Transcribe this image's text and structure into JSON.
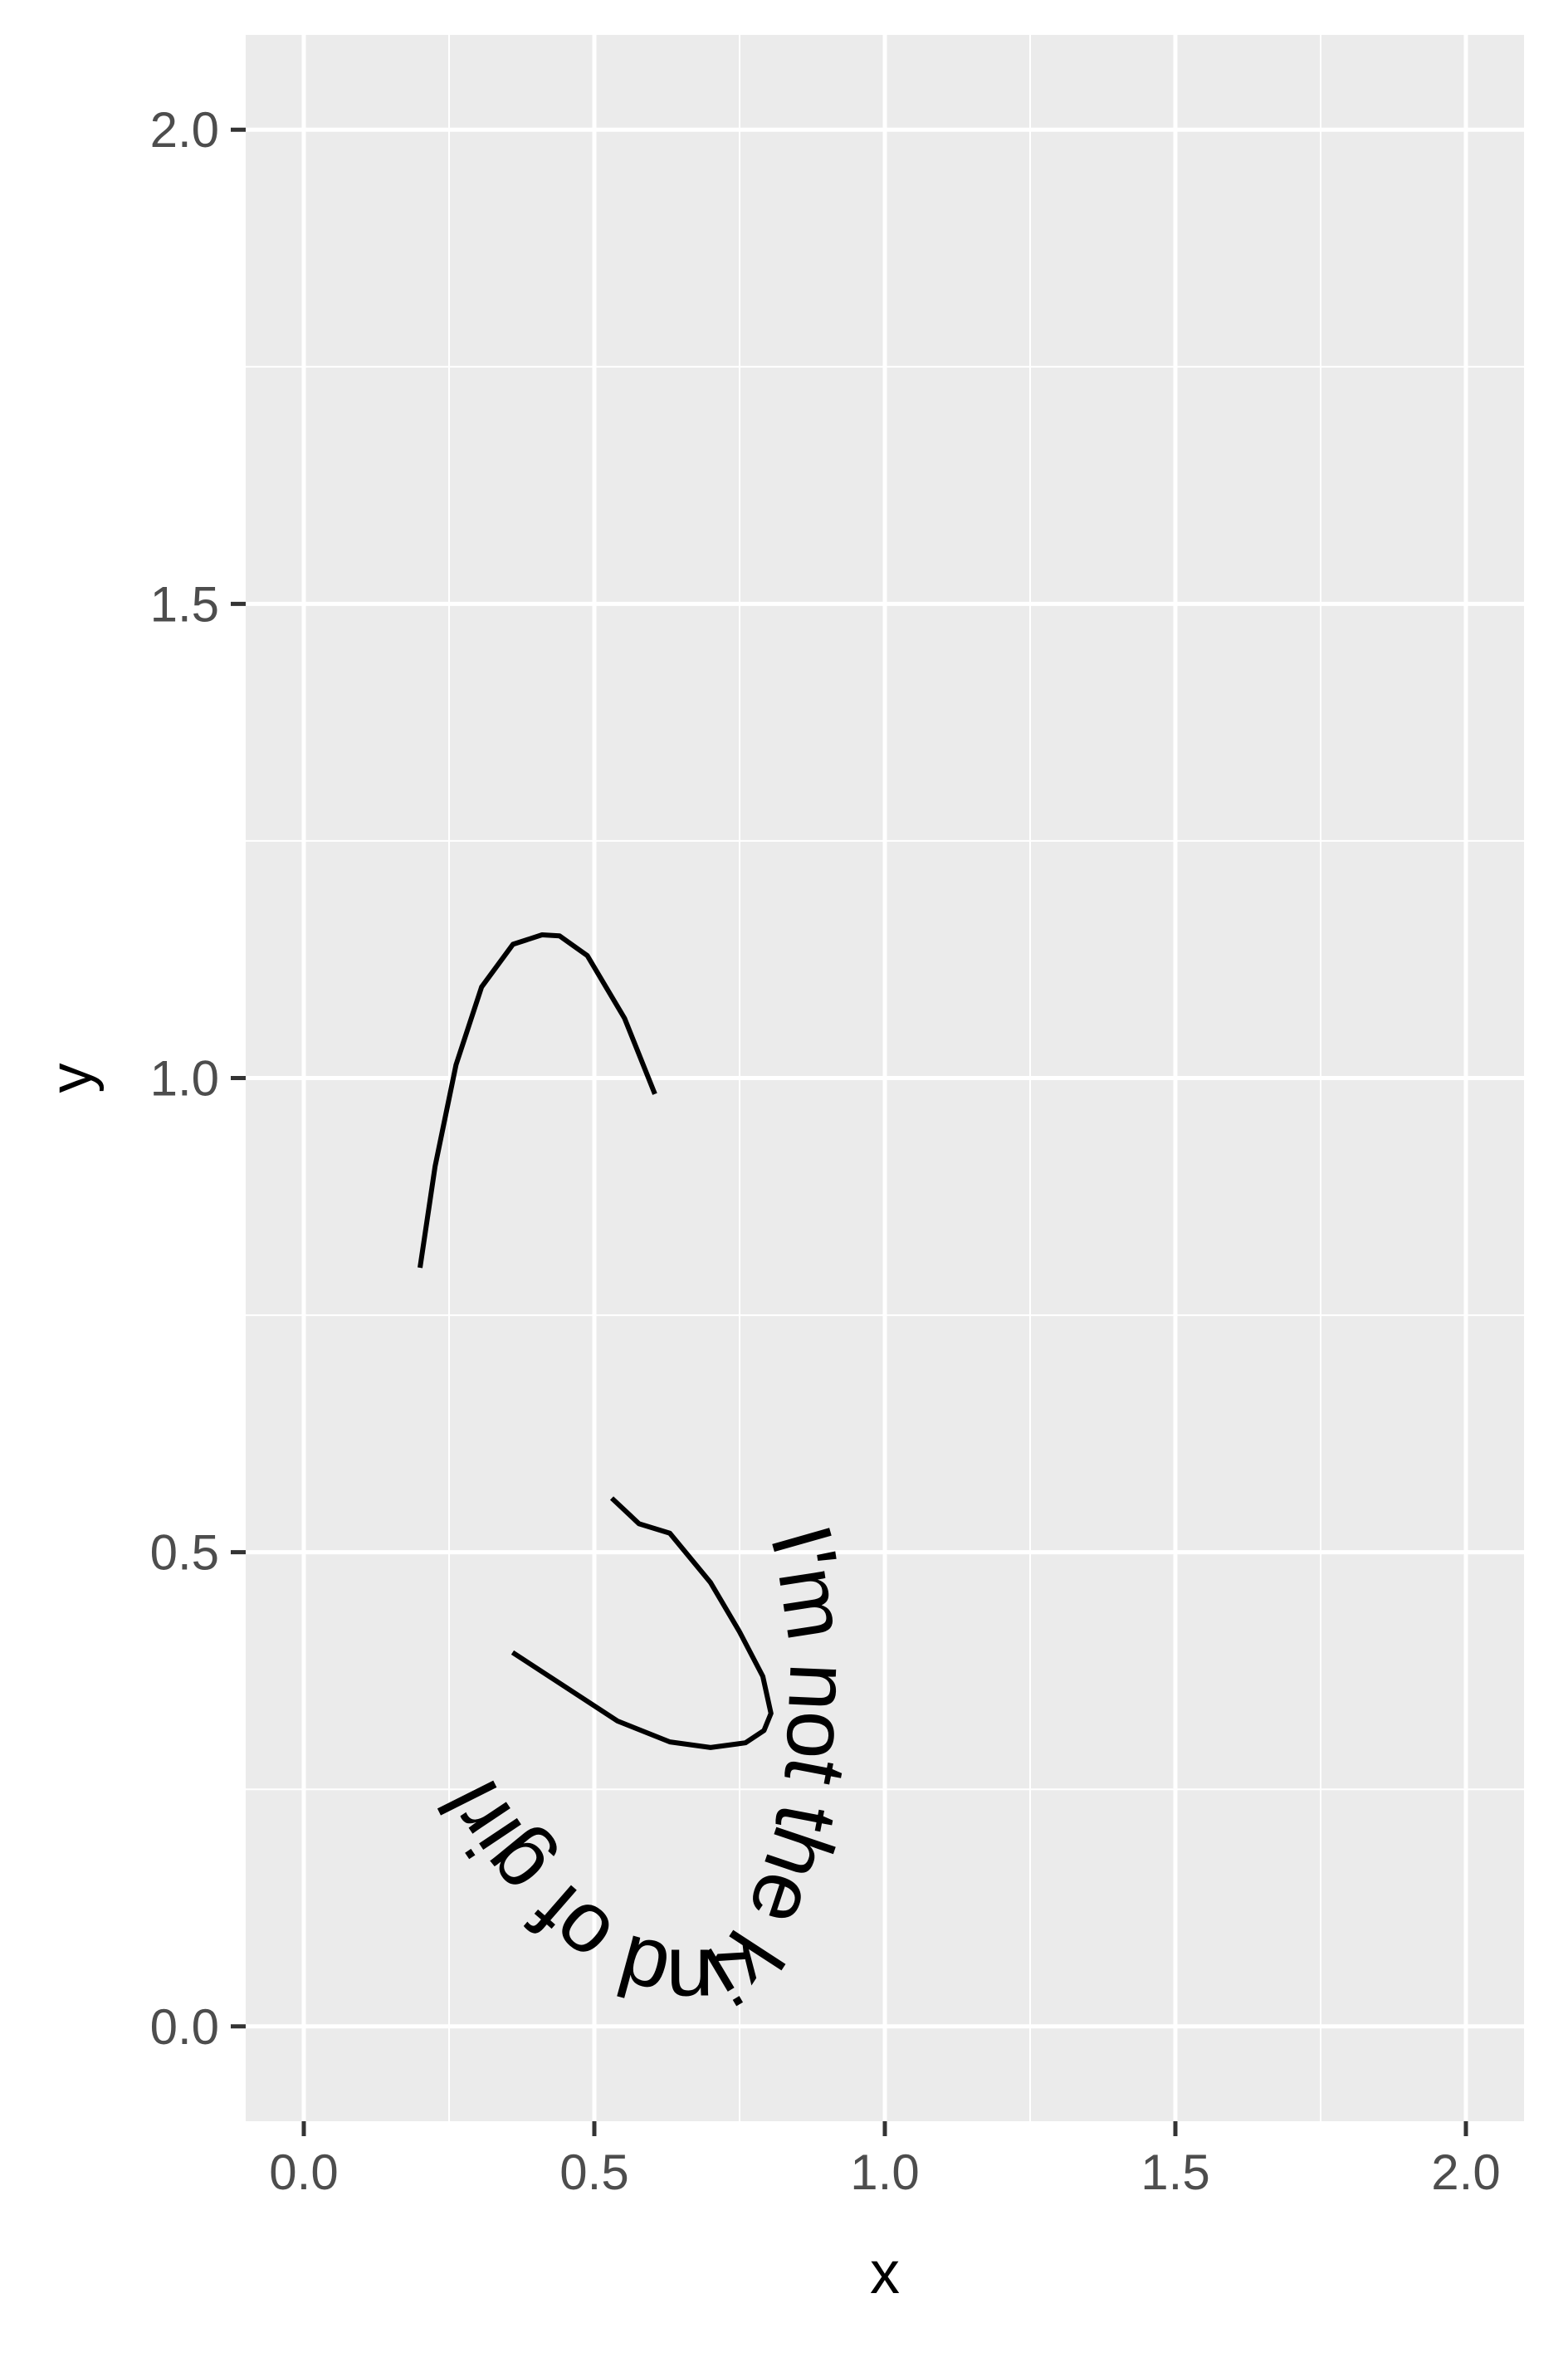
{
  "chart_data": {
    "type": "line",
    "title": "",
    "xlabel": "x",
    "ylabel": "y",
    "xlim": [
      -0.1,
      2.1
    ],
    "ylim": [
      -0.1,
      2.1
    ],
    "x_ticks": [
      0.0,
      0.5,
      1.0,
      1.5,
      2.0
    ],
    "y_ticks": [
      0.0,
      0.5,
      1.0,
      1.5,
      2.0
    ],
    "x_tick_labels": [
      "0.0",
      "0.5",
      "1.0",
      "1.5",
      "2.0"
    ],
    "y_tick_labels": [
      "0.0",
      "0.5",
      "1.0",
      "1.5",
      "2.0"
    ],
    "x_minor_ticks": [
      0.25,
      0.75,
      1.25,
      1.75
    ],
    "y_minor_ticks": [
      0.25,
      0.75,
      1.25,
      1.75
    ],
    "grid": true,
    "panel_background": "#ebebeb",
    "grid_color": "#ffffff",
    "line_color": "#000000",
    "text_color": "#000000",
    "tick_label_color": "#4d4d4d",
    "series": [
      {
        "label": "I'm not the kind of girl",
        "points": [
          [
            0.2,
            0.8
          ],
          [
            0.226,
            0.907
          ],
          [
            0.262,
            1.014
          ],
          [
            0.306,
            1.096
          ],
          [
            0.36,
            1.141
          ],
          [
            0.41,
            1.151
          ],
          [
            0.44,
            1.15
          ],
          [
            0.488,
            1.129
          ],
          [
            0.552,
            1.063
          ],
          [
            0.62,
            0.959
          ],
          [
            0.69,
            0.828
          ],
          [
            0.75,
            0.714
          ],
          [
            0.79,
            0.638
          ],
          [
            0.836,
            0.556
          ],
          [
            0.862,
            0.5
          ],
          [
            0.877,
            0.44
          ],
          [
            0.887,
            0.37
          ],
          [
            0.88,
            0.27
          ],
          [
            0.855,
            0.19
          ],
          [
            0.815,
            0.117
          ],
          [
            0.765,
            0.07
          ],
          [
            0.71,
            0.05
          ],
          [
            0.65,
            0.05
          ],
          [
            0.56,
            0.065
          ],
          [
            0.485,
            0.095
          ],
          [
            0.41,
            0.135
          ],
          [
            0.35,
            0.18
          ],
          [
            0.29,
            0.235
          ],
          [
            0.232,
            0.306
          ],
          [
            0.2,
            0.343
          ],
          [
            0.14,
            0.39
          ],
          [
            0.1,
            0.435
          ],
          [
            0.066,
            0.47
          ],
          [
            0.075,
            0.493
          ],
          [
            0.105,
            0.494
          ],
          [
            0.18,
            0.47
          ],
          [
            0.3,
            0.418
          ],
          [
            0.42,
            0.37
          ],
          [
            0.54,
            0.322
          ],
          [
            0.63,
            0.3
          ],
          [
            0.7,
            0.294
          ],
          [
            0.76,
            0.299
          ],
          [
            0.792,
            0.312
          ],
          [
            0.804,
            0.33
          ],
          [
            0.79,
            0.369
          ],
          [
            0.75,
            0.416
          ],
          [
            0.7,
            0.468
          ],
          [
            0.63,
            0.52
          ],
          [
            0.577,
            0.53
          ],
          [
            0.53,
            0.557
          ]
        ],
        "text_start": 0.2,
        "text_end": 0.8
      }
    ]
  }
}
